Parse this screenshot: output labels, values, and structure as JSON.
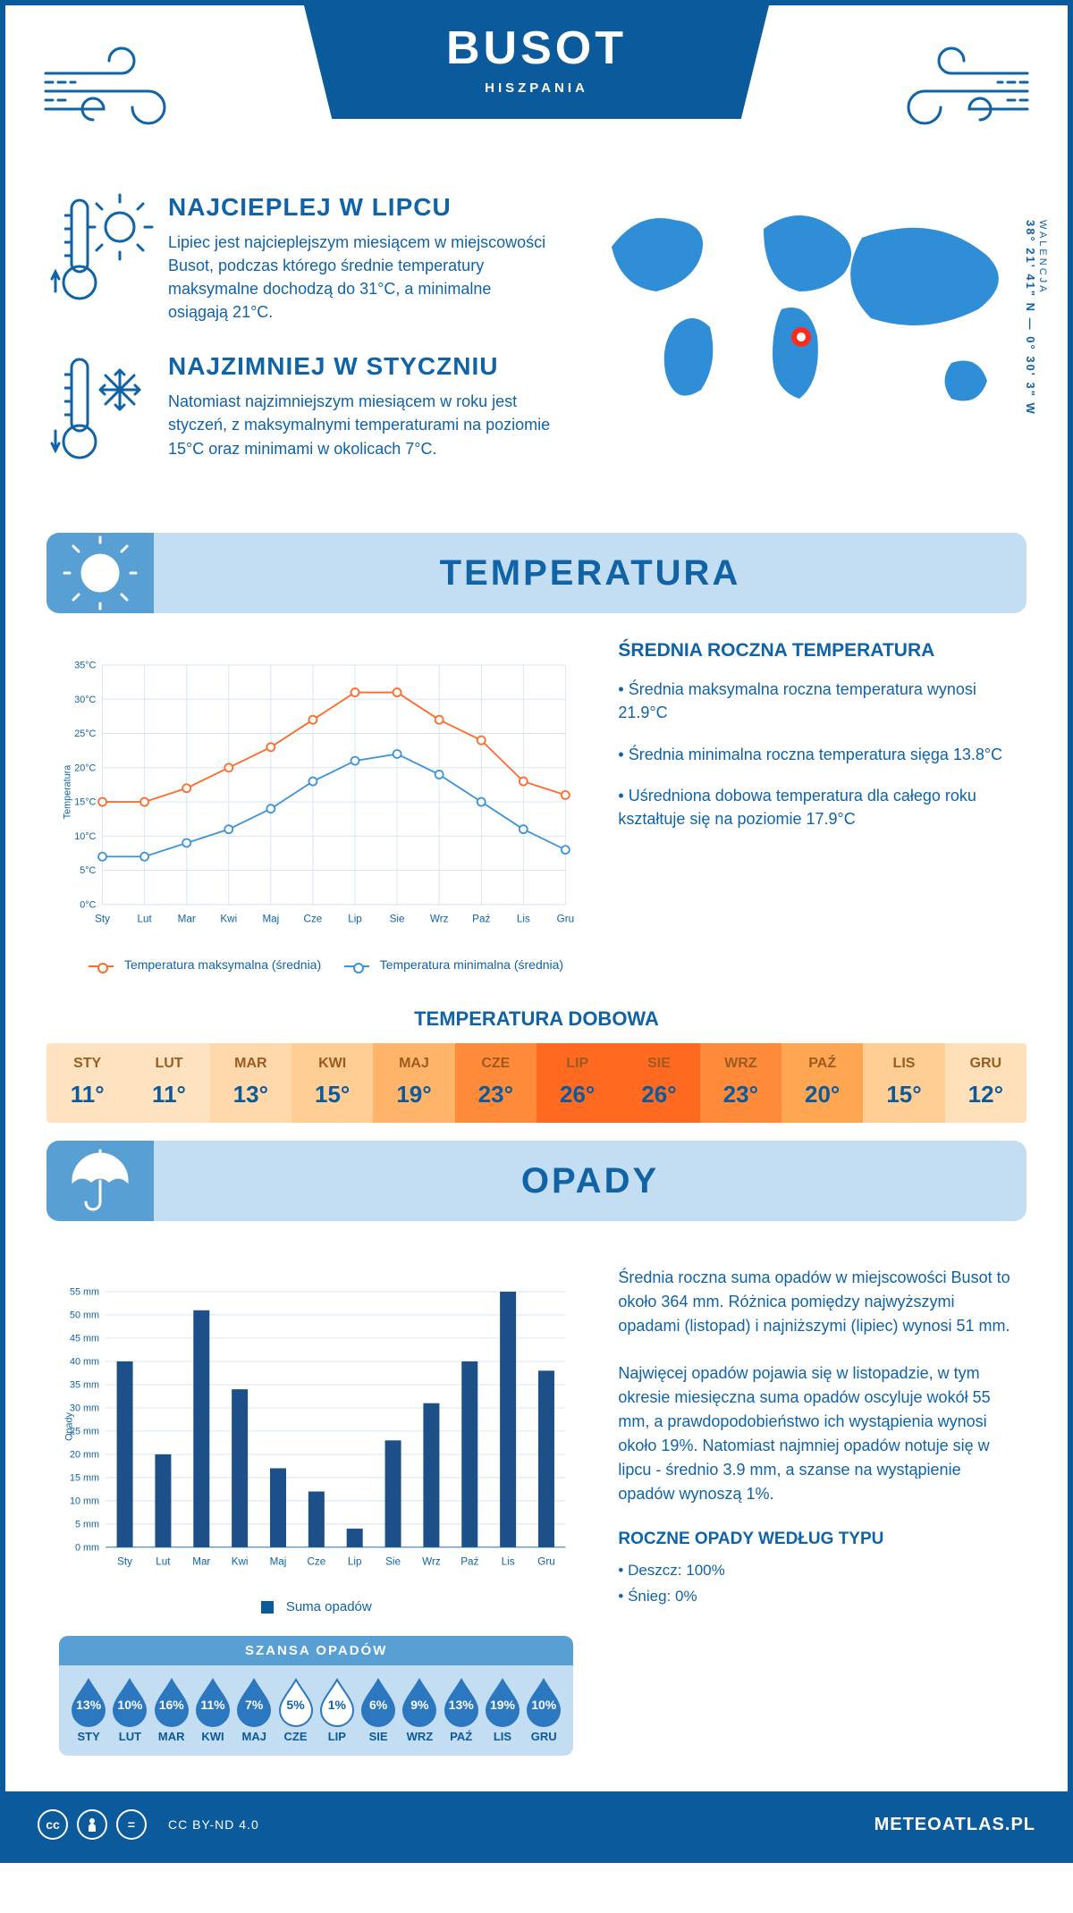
{
  "header": {
    "city": "BUSOT",
    "country": "HISZPANIA",
    "coords": "38° 21' 41\" N — 0° 30' 3\" W",
    "region": "WALENCJA"
  },
  "colors": {
    "blue_dark": "#0b5a9b",
    "blue": "#0f63a6",
    "blue_light": "#c3ddf2",
    "blue_mid": "#58a0d4",
    "grid": "#d3e3f3",
    "max_line": "#ff6a2b",
    "min_line": "#3a93dd",
    "bar": "#1d4f88",
    "marker": "#ff2c1a"
  },
  "intro": {
    "warm": {
      "title": "NAJCIEPLEJ W LIPCU",
      "text": "Lipiec jest najcieplejszym miesiącem w miejscowości Busot, podczas którego średnie temperatury maksymalne dochodzą do 31°C, a minimalne osiągają 21°C."
    },
    "cold": {
      "title": "NAJZIMNIEJ W STYCZNIU",
      "text": "Natomiast najzimniejszym miesiącem w roku jest styczeń, z maksymalnymi temperaturami na poziomie 15°C oraz minimami w okolicach 7°C."
    }
  },
  "sections": {
    "temperature": "TEMPERATURA",
    "precip": "OPADY"
  },
  "months": [
    "Sty",
    "Lut",
    "Mar",
    "Kwi",
    "Maj",
    "Cze",
    "Lip",
    "Sie",
    "Wrz",
    "Paź",
    "Lis",
    "Gru"
  ],
  "months_upper": [
    "STY",
    "LUT",
    "MAR",
    "KWI",
    "MAJ",
    "CZE",
    "LIP",
    "SIE",
    "WRZ",
    "PAŹ",
    "LIS",
    "GRU"
  ],
  "temp_chart": {
    "type": "line",
    "y_label": "Temperatura",
    "ylim": [
      0,
      35
    ],
    "ytick_step": 5,
    "ytick_suffix": "°C",
    "series": {
      "max": {
        "label": "Temperatura maksymalna (średnia)",
        "color": "#ff6a2b",
        "values": [
          15,
          15,
          17,
          20,
          23,
          27,
          31,
          31,
          27,
          24,
          18,
          16
        ]
      },
      "min": {
        "label": "Temperatura minimalna (średnia)",
        "color": "#3a93dd",
        "values": [
          7,
          7,
          9,
          11,
          14,
          18,
          21,
          22,
          19,
          15,
          11,
          8
        ]
      }
    },
    "grid_color": "#d3e3f3",
    "background": "#ffffff",
    "line_width": 2,
    "marker": "circle",
    "marker_size": 5
  },
  "temp_side": {
    "title": "ŚREDNIA ROCZNA TEMPERATURA",
    "bullets": [
      "Średnia maksymalna roczna temperatura wynosi 21.9°C",
      "Średnia minimalna roczna temperatura sięga 13.8°C",
      "Uśredniona dobowa temperatura dla całego roku kształtuje się na poziomie 17.9°C"
    ]
  },
  "daily_strip": {
    "title": "TEMPERATURA DOBOWA",
    "values": [
      "11°",
      "11°",
      "13°",
      "15°",
      "19°",
      "23°",
      "26°",
      "26°",
      "23°",
      "20°",
      "15°",
      "12°"
    ],
    "cell_colors": [
      "#ffe3c0",
      "#ffe3c0",
      "#ffd9ab",
      "#ffce94",
      "#ffb469",
      "#ff8b3a",
      "#ff6a20",
      "#ff6a20",
      "#ff8b3a",
      "#ffa652",
      "#ffce94",
      "#ffe0b9"
    ]
  },
  "precip_chart": {
    "type": "bar",
    "y_label": "Opady",
    "ylim": [
      0,
      55
    ],
    "ytick_step": 5,
    "ytick_suffix": " mm",
    "values": [
      40,
      20,
      51,
      34,
      17,
      12,
      4,
      23,
      31,
      40,
      55,
      38
    ],
    "bar_color": "#1d4f88",
    "grid_color": "#d3e3f3",
    "bar_width": 0.42,
    "legend_label": "Suma opadów"
  },
  "precip_side": {
    "p1": "Średnia roczna suma opadów w miejscowości Busot to około 364 mm. Różnica pomiędzy najwyższymi opadami (listopad) i najniższymi (lipiec) wynosi 51 mm.",
    "p2": "Najwięcej opadów pojawia się w listopadzie, w tym okresie miesięczna suma opadów oscyluje wokół 55 mm, a prawdopodobieństwo ich wystąpienia wynosi około 19%. Natomiast najmniej opadów notuje się w lipcu - średnio 3.9 mm, a szanse na wystąpienie opadów wynoszą 1%."
  },
  "chance": {
    "title": "SZANSA OPADÓW",
    "values": [
      "13%",
      "10%",
      "16%",
      "11%",
      "7%",
      "5%",
      "1%",
      "6%",
      "9%",
      "13%",
      "19%",
      "10%"
    ],
    "fill_threshold": 6,
    "drop_fill": "#2b77c0",
    "drop_empty_fill": "#ffffff",
    "drop_stroke": "#2b77c0"
  },
  "annual_type": {
    "title": "ROCZNE OPADY WEDŁUG TYPU",
    "lines": [
      "Deszcz: 100%",
      "Śnieg: 0%"
    ]
  },
  "footer": {
    "license": "CC BY-ND 4.0",
    "site": "METEOATLAS.PL"
  }
}
